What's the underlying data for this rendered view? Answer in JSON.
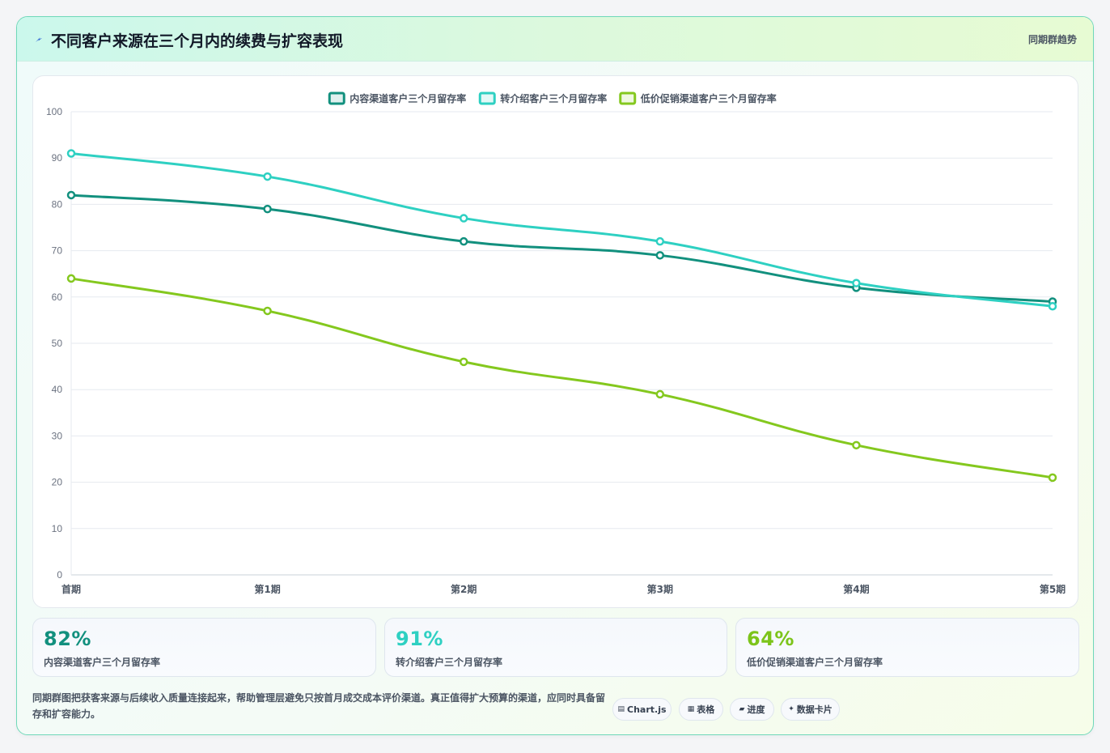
{
  "header": {
    "title": "不同客户来源在三个月内的续费与扩容表现",
    "right_label": "同期群趋势",
    "icon": "lightning-icon"
  },
  "chart_data": {
    "type": "line",
    "categories": [
      "首期",
      "第1期",
      "第2期",
      "第3期",
      "第4期",
      "第5期"
    ],
    "series": [
      {
        "name": "内容渠道客户三个月留存率",
        "values": [
          82,
          79,
          72,
          69,
          62,
          59
        ],
        "color": "#12907e"
      },
      {
        "name": "转介绍客户三个月留存率",
        "values": [
          91,
          86,
          77,
          72,
          63,
          58
        ],
        "color": "#2ed0c2"
      },
      {
        "name": "低价促销渠道客户三个月留存率",
        "values": [
          64,
          57,
          46,
          39,
          28,
          21
        ],
        "color": "#84c81e"
      }
    ],
    "ylim": [
      0,
      100
    ],
    "yticks": [
      0,
      10,
      20,
      30,
      40,
      50,
      60,
      70,
      80,
      90,
      100
    ],
    "grid": true,
    "legend": "top-center"
  },
  "stats": [
    {
      "value": "82%",
      "label": "内容渠道客户三个月留存率",
      "color": "#12907e"
    },
    {
      "value": "91%",
      "label": "转介绍客户三个月留存率",
      "color": "#2ed0c2"
    },
    {
      "value": "64%",
      "label": "低价促销渠道客户三个月留存率",
      "color": "#7cc41a"
    }
  ],
  "footnote": "同期群图把获客来源与后续收入质量连接起来，帮助管理层避免只按首月成交成本评价渠道。真正值得扩大预算的渠道，应同时具备留存和扩容能力。",
  "tags": [
    {
      "icon": "▤",
      "icon_name": "chart-icon",
      "label": "Chart.js"
    },
    {
      "icon": "▦",
      "icon_name": "table-icon",
      "label": "表格"
    },
    {
      "icon": "▰",
      "icon_name": "progress-icon",
      "label": "进度"
    },
    {
      "icon": "✦",
      "icon_name": "sparkle-icon",
      "label": "数据卡片"
    }
  ]
}
